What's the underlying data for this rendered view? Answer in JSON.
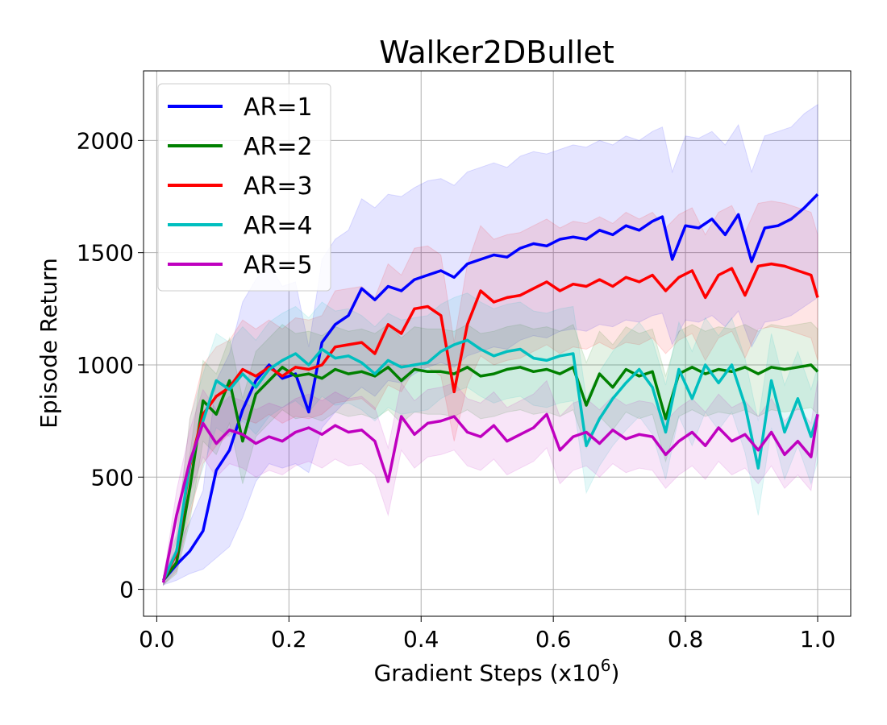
{
  "chart_data": {
    "type": "line",
    "title": "Walker2DBullet",
    "xlabel": "Gradient Steps (x10",
    "xlabel_exp": "6",
    "xlabel_close": ")",
    "ylabel": "Episode Return",
    "xlim": [
      -0.02,
      1.05
    ],
    "ylim": [
      -120,
      2310
    ],
    "xticks": [
      0.0,
      0.2,
      0.4,
      0.6,
      0.8,
      1.0
    ],
    "xtick_labels": [
      "0.0",
      "0.2",
      "0.4",
      "0.6",
      "0.8",
      "1.0"
    ],
    "yticks": [
      0,
      500,
      1000,
      1500,
      2000
    ],
    "ytick_labels": [
      "0",
      "500",
      "1000",
      "1500",
      "2000"
    ],
    "grid": true,
    "legend_position": "top-left",
    "series": [
      {
        "name": "AR=1",
        "color": "#0000ff",
        "x": [
          0.01,
          0.03,
          0.05,
          0.07,
          0.09,
          0.11,
          0.13,
          0.15,
          0.17,
          0.19,
          0.21,
          0.23,
          0.25,
          0.27,
          0.29,
          0.31,
          0.33,
          0.35,
          0.37,
          0.39,
          0.41,
          0.43,
          0.45,
          0.47,
          0.49,
          0.51,
          0.53,
          0.55,
          0.57,
          0.59,
          0.61,
          0.63,
          0.65,
          0.67,
          0.69,
          0.71,
          0.73,
          0.75,
          0.765,
          0.78,
          0.8,
          0.82,
          0.84,
          0.86,
          0.88,
          0.9,
          0.92,
          0.94,
          0.96,
          0.98,
          1.0
        ],
        "y": [
          40,
          110,
          170,
          260,
          530,
          620,
          800,
          930,
          1000,
          940,
          960,
          790,
          1100,
          1180,
          1220,
          1340,
          1290,
          1350,
          1330,
          1380,
          1400,
          1420,
          1390,
          1450,
          1470,
          1490,
          1480,
          1520,
          1540,
          1530,
          1560,
          1570,
          1560,
          1600,
          1580,
          1620,
          1600,
          1640,
          1660,
          1470,
          1620,
          1610,
          1650,
          1580,
          1670,
          1460,
          1610,
          1620,
          1650,
          1700,
          1760
        ],
        "lower": [
          20,
          40,
          70,
          90,
          140,
          190,
          320,
          480,
          560,
          540,
          560,
          520,
          720,
          790,
          850,
          900,
          860,
          930,
          920,
          960,
          990,
          1010,
          990,
          1040,
          1060,
          1080,
          1070,
          1110,
          1130,
          1120,
          1150,
          1160,
          1150,
          1180,
          1170,
          1200,
          1190,
          1220,
          1230,
          1090,
          1200,
          1190,
          1220,
          1170,
          1240,
          1080,
          1190,
          1200,
          1220,
          1260,
          1300
        ],
        "upper": [
          60,
          190,
          300,
          440,
          930,
          1050,
          1280,
          1380,
          1450,
          1350,
          1370,
          1080,
          1470,
          1560,
          1600,
          1740,
          1700,
          1760,
          1750,
          1790,
          1820,
          1830,
          1800,
          1860,
          1880,
          1900,
          1880,
          1930,
          1950,
          1940,
          1960,
          1980,
          1970,
          2000,
          1980,
          2020,
          2000,
          2040,
          2060,
          1860,
          2020,
          2010,
          2040,
          1980,
          2070,
          1860,
          2020,
          2040,
          2060,
          2120,
          2160
        ]
      },
      {
        "name": "AR=2",
        "color": "#008000",
        "x": [
          0.01,
          0.03,
          0.05,
          0.07,
          0.09,
          0.11,
          0.13,
          0.15,
          0.17,
          0.19,
          0.21,
          0.23,
          0.25,
          0.27,
          0.29,
          0.31,
          0.33,
          0.35,
          0.37,
          0.39,
          0.41,
          0.43,
          0.45,
          0.47,
          0.49,
          0.51,
          0.53,
          0.55,
          0.57,
          0.59,
          0.61,
          0.63,
          0.65,
          0.67,
          0.69,
          0.71,
          0.73,
          0.75,
          0.77,
          0.79,
          0.81,
          0.83,
          0.85,
          0.87,
          0.89,
          0.91,
          0.93,
          0.95,
          0.97,
          0.99,
          1.0
        ],
        "y": [
          40,
          120,
          450,
          840,
          780,
          930,
          660,
          870,
          930,
          990,
          950,
          960,
          940,
          980,
          960,
          970,
          950,
          990,
          930,
          980,
          970,
          970,
          960,
          990,
          950,
          960,
          980,
          990,
          970,
          980,
          960,
          990,
          820,
          960,
          900,
          980,
          950,
          970,
          760,
          960,
          990,
          960,
          980,
          970,
          990,
          960,
          990,
          980,
          990,
          1000,
          970
        ],
        "lower": [
          20,
          70,
          300,
          660,
          600,
          740,
          470,
          680,
          740,
          800,
          760,
          770,
          750,
          790,
          770,
          780,
          760,
          800,
          740,
          790,
          780,
          780,
          770,
          800,
          760,
          770,
          790,
          800,
          780,
          790,
          770,
          800,
          630,
          770,
          710,
          790,
          760,
          780,
          570,
          770,
          800,
          770,
          790,
          780,
          800,
          770,
          800,
          790,
          800,
          810,
          780
        ],
        "upper": [
          60,
          170,
          600,
          1020,
          960,
          1120,
          850,
          1060,
          1120,
          1180,
          1140,
          1150,
          1130,
          1170,
          1150,
          1160,
          1140,
          1180,
          1120,
          1170,
          1160,
          1160,
          1150,
          1180,
          1140,
          1150,
          1170,
          1180,
          1160,
          1170,
          1150,
          1180,
          1010,
          1150,
          1090,
          1170,
          1140,
          1160,
          950,
          1150,
          1180,
          1150,
          1170,
          1160,
          1180,
          1150,
          1180,
          1170,
          1180,
          1190,
          1160
        ]
      },
      {
        "name": "AR=3",
        "color": "#ff0000",
        "x": [
          0.01,
          0.03,
          0.05,
          0.07,
          0.09,
          0.11,
          0.13,
          0.15,
          0.17,
          0.19,
          0.21,
          0.23,
          0.25,
          0.27,
          0.29,
          0.31,
          0.33,
          0.35,
          0.37,
          0.39,
          0.41,
          0.43,
          0.45,
          0.47,
          0.49,
          0.51,
          0.53,
          0.55,
          0.57,
          0.59,
          0.61,
          0.63,
          0.65,
          0.67,
          0.69,
          0.71,
          0.73,
          0.75,
          0.77,
          0.79,
          0.81,
          0.83,
          0.85,
          0.87,
          0.89,
          0.91,
          0.93,
          0.95,
          0.97,
          0.99,
          1.0
        ],
        "y": [
          40,
          160,
          550,
          780,
          860,
          900,
          980,
          950,
          990,
          950,
          990,
          980,
          1000,
          1080,
          1090,
          1100,
          1050,
          1180,
          1140,
          1250,
          1260,
          1220,
          880,
          1180,
          1330,
          1280,
          1300,
          1310,
          1340,
          1370,
          1330,
          1360,
          1350,
          1380,
          1350,
          1390,
          1370,
          1400,
          1330,
          1390,
          1420,
          1300,
          1400,
          1430,
          1310,
          1440,
          1450,
          1440,
          1420,
          1400,
          1300
        ],
        "lower": [
          20,
          80,
          330,
          560,
          640,
          690,
          760,
          740,
          780,
          740,
          770,
          760,
          780,
          830,
          840,
          850,
          800,
          910,
          880,
          980,
          990,
          950,
          660,
          910,
          1040,
          1000,
          1020,
          1030,
          1060,
          1090,
          1050,
          1080,
          1070,
          1100,
          1070,
          1100,
          1090,
          1120,
          1050,
          1110,
          1140,
          1020,
          1120,
          1150,
          1030,
          1160,
          1170,
          1160,
          1140,
          1120,
          1020
        ],
        "upper": [
          60,
          240,
          760,
          1000,
          1080,
          1110,
          1200,
          1160,
          1200,
          1160,
          1210,
          1200,
          1220,
          1330,
          1340,
          1350,
          1300,
          1450,
          1400,
          1520,
          1530,
          1490,
          1100,
          1450,
          1620,
          1560,
          1580,
          1590,
          1620,
          1650,
          1610,
          1640,
          1630,
          1660,
          1630,
          1680,
          1650,
          1680,
          1610,
          1670,
          1700,
          1580,
          1680,
          1710,
          1590,
          1720,
          1730,
          1720,
          1700,
          1680,
          1580
        ]
      },
      {
        "name": "AR=4",
        "color": "#00bfbf",
        "x": [
          0.01,
          0.03,
          0.05,
          0.07,
          0.09,
          0.11,
          0.13,
          0.15,
          0.17,
          0.19,
          0.21,
          0.23,
          0.25,
          0.27,
          0.29,
          0.31,
          0.33,
          0.35,
          0.37,
          0.39,
          0.41,
          0.43,
          0.45,
          0.47,
          0.49,
          0.51,
          0.53,
          0.55,
          0.57,
          0.59,
          0.61,
          0.63,
          0.65,
          0.67,
          0.69,
          0.71,
          0.73,
          0.75,
          0.77,
          0.79,
          0.81,
          0.83,
          0.85,
          0.87,
          0.89,
          0.91,
          0.93,
          0.95,
          0.97,
          0.99,
          1.0
        ],
        "y": [
          40,
          170,
          560,
          750,
          930,
          890,
          960,
          900,
          980,
          1020,
          1050,
          1000,
          1070,
          1030,
          1040,
          1010,
          960,
          1020,
          990,
          1000,
          1010,
          1060,
          1090,
          1110,
          1070,
          1040,
          1060,
          1070,
          1030,
          1020,
          1040,
          1050,
          640,
          760,
          850,
          920,
          980,
          900,
          700,
          980,
          850,
          1000,
          920,
          1000,
          820,
          540,
          930,
          700,
          850,
          680,
          780
        ],
        "lower": [
          20,
          90,
          360,
          540,
          720,
          680,
          750,
          690,
          770,
          810,
          840,
          790,
          860,
          820,
          830,
          800,
          750,
          810,
          780,
          790,
          800,
          850,
          880,
          900,
          860,
          830,
          850,
          860,
          820,
          810,
          830,
          840,
          430,
          550,
          640,
          710,
          770,
          690,
          490,
          770,
          640,
          790,
          710,
          790,
          610,
          330,
          720,
          490,
          640,
          470,
          570
        ],
        "upper": [
          60,
          250,
          760,
          960,
          1140,
          1100,
          1170,
          1110,
          1190,
          1230,
          1260,
          1210,
          1280,
          1240,
          1250,
          1220,
          1170,
          1230,
          1200,
          1210,
          1220,
          1270,
          1300,
          1320,
          1280,
          1250,
          1270,
          1280,
          1240,
          1230,
          1250,
          1260,
          850,
          970,
          1060,
          1130,
          1190,
          1110,
          910,
          1190,
          1060,
          1210,
          1130,
          1210,
          1030,
          750,
          1140,
          910,
          1060,
          890,
          990
        ]
      },
      {
        "name": "AR=5",
        "color": "#bf00bf",
        "x": [
          0.01,
          0.03,
          0.05,
          0.07,
          0.09,
          0.11,
          0.13,
          0.15,
          0.17,
          0.19,
          0.21,
          0.23,
          0.25,
          0.27,
          0.29,
          0.31,
          0.33,
          0.35,
          0.37,
          0.39,
          0.41,
          0.43,
          0.45,
          0.47,
          0.49,
          0.51,
          0.53,
          0.55,
          0.57,
          0.59,
          0.61,
          0.63,
          0.65,
          0.67,
          0.69,
          0.71,
          0.73,
          0.75,
          0.77,
          0.79,
          0.81,
          0.83,
          0.85,
          0.87,
          0.89,
          0.91,
          0.93,
          0.95,
          0.97,
          0.99,
          1.0
        ],
        "y": [
          30,
          330,
          570,
          740,
          650,
          710,
          690,
          650,
          680,
          660,
          700,
          720,
          690,
          730,
          700,
          710,
          660,
          480,
          770,
          690,
          740,
          750,
          770,
          700,
          680,
          730,
          660,
          690,
          720,
          780,
          620,
          680,
          700,
          650,
          710,
          670,
          690,
          680,
          600,
          660,
          700,
          640,
          720,
          660,
          690,
          620,
          700,
          600,
          660,
          590,
          780
        ],
        "lower": [
          15,
          220,
          430,
          590,
          500,
          560,
          540,
          500,
          530,
          510,
          550,
          570,
          540,
          580,
          550,
          560,
          510,
          330,
          620,
          540,
          590,
          600,
          620,
          550,
          530,
          580,
          510,
          540,
          570,
          630,
          470,
          530,
          550,
          500,
          560,
          520,
          540,
          530,
          450,
          510,
          550,
          490,
          570,
          510,
          540,
          470,
          550,
          450,
          510,
          440,
          630
        ],
        "upper": [
          45,
          440,
          710,
          890,
          800,
          860,
          840,
          800,
          830,
          810,
          850,
          870,
          840,
          880,
          850,
          860,
          810,
          630,
          920,
          840,
          890,
          900,
          920,
          850,
          830,
          880,
          810,
          840,
          870,
          930,
          770,
          830,
          850,
          800,
          860,
          820,
          840,
          830,
          750,
          810,
          850,
          790,
          870,
          810,
          840,
          770,
          850,
          750,
          810,
          740,
          930
        ]
      }
    ]
  }
}
